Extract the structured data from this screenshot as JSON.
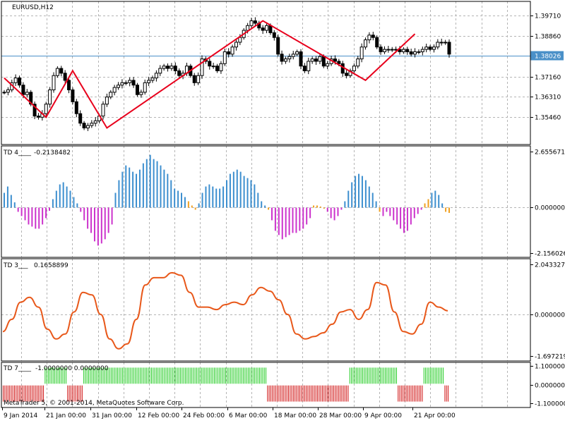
{
  "window": {
    "symbol_title": "EURUSD,H12",
    "copyright": "MetaTrader 5, © 2001-2014, MetaQuotes Software Corp."
  },
  "colors": {
    "background": "#ffffff",
    "grid": "#b4b4b4",
    "frame": "#000000",
    "zigzag": "#e8001c",
    "bid_line": "#4a90c8",
    "price_label_bg": "#4a90c8",
    "hist_up": "#3d8fcf",
    "hist_down": "#cc33cc",
    "hist_turn": "#f0a020",
    "osc_line": "#e8581a",
    "bar_green": "#22cc22",
    "bar_red": "#d01010",
    "candle": "#000000"
  },
  "time_axis": {
    "labels": [
      "9 Jan 2014",
      "21 Jan 00:00",
      "31 Jan 00:00",
      "12 Feb 00:00",
      "24 Feb 00:00",
      "6 Mar 00:00",
      "18 Mar 00:00",
      "28 Mar 00:00",
      "9 Apr 00:00",
      "21 Apr 00:00"
    ]
  },
  "chart_data": [
    {
      "type": "candlestick",
      "title": "EURUSD,H12",
      "y_ticks": [
        "1.39710",
        "1.38860",
        "1.38026",
        "1.37160",
        "1.36310",
        "1.35460"
      ],
      "current_price": "1.38026",
      "ylim": [
        1.3457,
        1.3996
      ],
      "bid_price": 1.38026,
      "close": [
        1.365,
        1.366,
        1.369,
        1.371,
        1.368,
        1.364,
        1.365,
        1.36,
        1.355,
        1.3545,
        1.356,
        1.36,
        1.366,
        1.372,
        1.375,
        1.373,
        1.37,
        1.366,
        1.361,
        1.356,
        1.352,
        1.35,
        1.351,
        1.352,
        1.353,
        1.355,
        1.36,
        1.363,
        1.365,
        1.367,
        1.368,
        1.369,
        1.369,
        1.37,
        1.368,
        1.364,
        1.365,
        1.369,
        1.37,
        1.371,
        1.373,
        1.375,
        1.376,
        1.375,
        1.376,
        1.374,
        1.372,
        1.373,
        1.376,
        1.372,
        1.369,
        1.372,
        1.379,
        1.378,
        1.376,
        1.376,
        1.374,
        1.377,
        1.382,
        1.381,
        1.384,
        1.386,
        1.388,
        1.391,
        1.393,
        1.395,
        1.394,
        1.392,
        1.391,
        1.393,
        1.39,
        1.388,
        1.381,
        1.378,
        1.379,
        1.38,
        1.381,
        1.382,
        1.376,
        1.374,
        1.378,
        1.379,
        1.378,
        1.38,
        1.376,
        1.377,
        1.379,
        1.378,
        1.377,
        1.373,
        1.372,
        1.374,
        1.376,
        1.379,
        1.384,
        1.387,
        1.389,
        1.388,
        1.384,
        1.382,
        1.383,
        1.383,
        1.383,
        1.383,
        1.382,
        1.383,
        1.382,
        1.381,
        1.382,
        1.382,
        1.383,
        1.384,
        1.383,
        1.384,
        1.386,
        1.386,
        1.386,
        1.381
      ]
    },
    {
      "type": "histogram",
      "title": "TD 4____",
      "value_label": "-0.2138482",
      "y_ticks": [
        "2.6556716",
        "0.0000000",
        "-2.1560269"
      ],
      "ylim": [
        -2.1560269,
        2.6556716
      ],
      "values": [
        0.7,
        1.0,
        0.6,
        0.25,
        -0.2,
        -0.4,
        -0.6,
        -0.8,
        -0.9,
        -1.0,
        -1.0,
        -0.8,
        -0.5,
        -0.15,
        0.4,
        0.8,
        1.1,
        1.2,
        1.0,
        0.8,
        0.5,
        0.2,
        -0.2,
        -0.6,
        -1.0,
        -1.2,
        -1.6,
        -1.8,
        -1.7,
        -1.5,
        -1.2,
        -0.8,
        0.7,
        1.3,
        1.7,
        2.0,
        1.9,
        1.7,
        1.6,
        1.8,
        2.1,
        2.3,
        2.5,
        2.3,
        2.2,
        2.0,
        1.8,
        1.6,
        1.3,
        0.9,
        0.8,
        0.7,
        0.5,
        0.3,
        0.1,
        -0.1,
        0.2,
        0.7,
        1.0,
        1.1,
        1.0,
        0.9,
        0.9,
        1.0,
        1.3,
        1.6,
        1.7,
        1.8,
        1.7,
        1.5,
        1.4,
        1.3,
        1.1,
        0.7,
        0.3,
        0.1,
        -0.1,
        -0.6,
        -1.1,
        -1.3,
        -1.5,
        -1.4,
        -1.3,
        -1.2,
        -1.2,
        -1.1,
        -1.0,
        -0.8,
        -0.5,
        0.1,
        0.1,
        0.05,
        -0.05,
        -0.2,
        -0.5,
        -0.6,
        -0.4,
        -0.1,
        0.3,
        0.8,
        1.2,
        1.5,
        1.6,
        1.5,
        1.3,
        1.0,
        0.7,
        0.3,
        -0.2,
        -0.4,
        -0.2,
        -0.4,
        -0.6,
        -0.8,
        -1.0,
        -1.2,
        -1.1,
        -0.8,
        -0.5,
        -0.3,
        -0.1,
        0.2,
        0.4,
        0.7,
        0.8,
        0.6,
        0.2,
        -0.2,
        -0.25
      ],
      "color_index": [
        1,
        1,
        1,
        1,
        0,
        0,
        0,
        0,
        0,
        0,
        0,
        0,
        0,
        0,
        1,
        1,
        1,
        1,
        1,
        1,
        1,
        1,
        0,
        0,
        0,
        0,
        0,
        0,
        0,
        0,
        0,
        0,
        1,
        1,
        1,
        1,
        1,
        1,
        1,
        1,
        1,
        1,
        1,
        1,
        1,
        1,
        1,
        1,
        1,
        1,
        1,
        1,
        1,
        2,
        2,
        2,
        1,
        1,
        1,
        1,
        1,
        1,
        1,
        1,
        1,
        1,
        1,
        1,
        1,
        1,
        1,
        1,
        1,
        1,
        1,
        1,
        2,
        0,
        0,
        0,
        0,
        0,
        0,
        0,
        0,
        0,
        0,
        0,
        0,
        2,
        2,
        2,
        2,
        0,
        0,
        0,
        0,
        0,
        1,
        1,
        1,
        1,
        1,
        1,
        1,
        1,
        1,
        1,
        2,
        0,
        0,
        0,
        0,
        0,
        0,
        0,
        0,
        0,
        0,
        0,
        0,
        2,
        2,
        1,
        1,
        1,
        1,
        2,
        2
      ]
    },
    {
      "type": "line",
      "title": "TD 3___",
      "value_label": "0.1658899",
      "y_ticks": [
        "2.0433276",
        "0.0000000",
        "-1.6972196"
      ],
      "ylim": [
        -1.6972196,
        2.0433276
      ],
      "values": [
        -0.7,
        -0.2,
        0.5,
        0.7,
        0.3,
        -0.6,
        -1.0,
        -0.8,
        0.1,
        0.9,
        0.8,
        0.0,
        -1.0,
        -1.4,
        -1.2,
        -0.2,
        1.2,
        1.5,
        1.5,
        1.7,
        1.6,
        0.9,
        0.3,
        0.3,
        0.2,
        0.4,
        0.5,
        0.4,
        0.8,
        1.1,
        0.95,
        0.6,
        0.0,
        -0.8,
        -1.0,
        -0.9,
        -0.75,
        -0.4,
        0.1,
        0.2,
        -0.2,
        0.2,
        1.3,
        1.2,
        0.1,
        -0.7,
        -0.8,
        -0.4,
        0.5,
        0.3,
        0.15
      ]
    },
    {
      "type": "bar",
      "title": "TD 7____",
      "value_label": "-1.0000000 0.0000000",
      "y_ticks": [
        "1.1000000",
        "0.0000000",
        "-1.1000000"
      ],
      "ylim": [
        -1.1,
        1.1
      ],
      "values": [
        -1,
        -1,
        -1,
        -1,
        -1,
        -1,
        -1,
        -1,
        -1,
        -1,
        -1,
        -1,
        -1,
        -1,
        -1,
        -1,
        -1,
        -1,
        -1,
        -1,
        -1,
        -1,
        -1,
        -1,
        -1,
        -1,
        1,
        1,
        1,
        1,
        1,
        1,
        1,
        1,
        1,
        1,
        1,
        1,
        1,
        1,
        -1,
        -1,
        -1,
        -1,
        -1,
        -1,
        -1,
        -1,
        -1,
        -1,
        1,
        1,
        1,
        1,
        1,
        1,
        1,
        1,
        1,
        1,
        1,
        1,
        1,
        1,
        1,
        1,
        1,
        1,
        1,
        1,
        1,
        1,
        1,
        1,
        1,
        1,
        1,
        1,
        1,
        1,
        1,
        1,
        1,
        1,
        1,
        1,
        1,
        1,
        1,
        1,
        1,
        1,
        1,
        1,
        1,
        1,
        1,
        1,
        1,
        1,
        1,
        1,
        1,
        1,
        1,
        1,
        1,
        1,
        1,
        1,
        1,
        1,
        1,
        1,
        1,
        1,
        1,
        1,
        1,
        1,
        1,
        1,
        1,
        1,
        1,
        1,
        1,
        1,
        1,
        1,
        1,
        1,
        1,
        1,
        1,
        1,
        1,
        1,
        1,
        1,
        1,
        1,
        1,
        1,
        1,
        1,
        1,
        1,
        1,
        1,
        1,
        1,
        1,
        1,
        1,
        1,
        1,
        1,
        1,
        1,
        1,
        1,
        1,
        1,
        -1,
        -1,
        -1,
        -1,
        -1,
        -1,
        -1,
        -1,
        -1,
        -1,
        -1,
        -1,
        -1,
        -1,
        -1,
        -1,
        -1,
        -1,
        -1,
        -1,
        -1,
        -1,
        -1,
        -1,
        -1,
        -1,
        -1,
        -1,
        -1,
        -1,
        -1,
        -1,
        -1,
        -1,
        -1,
        -1,
        -1,
        -1,
        -1,
        -1,
        -1,
        -1,
        -1,
        -1,
        -1,
        -1,
        -1,
        -1,
        -1,
        -1,
        -1,
        1,
        1,
        1,
        1,
        1,
        1,
        1,
        1,
        1,
        1,
        1,
        1,
        1,
        1,
        1,
        1,
        1,
        1,
        1,
        1,
        1,
        1,
        1,
        1,
        1,
        1,
        1,
        1,
        1,
        1,
        -1,
        -1,
        -1,
        -1,
        -1,
        -1,
        -1,
        -1,
        -1,
        -1,
        -1,
        -1,
        -1,
        -1,
        -1,
        -1,
        1,
        1,
        1,
        1,
        1,
        1,
        1,
        1,
        1,
        1,
        1,
        1,
        1,
        -1,
        -1,
        -1
      ]
    }
  ]
}
